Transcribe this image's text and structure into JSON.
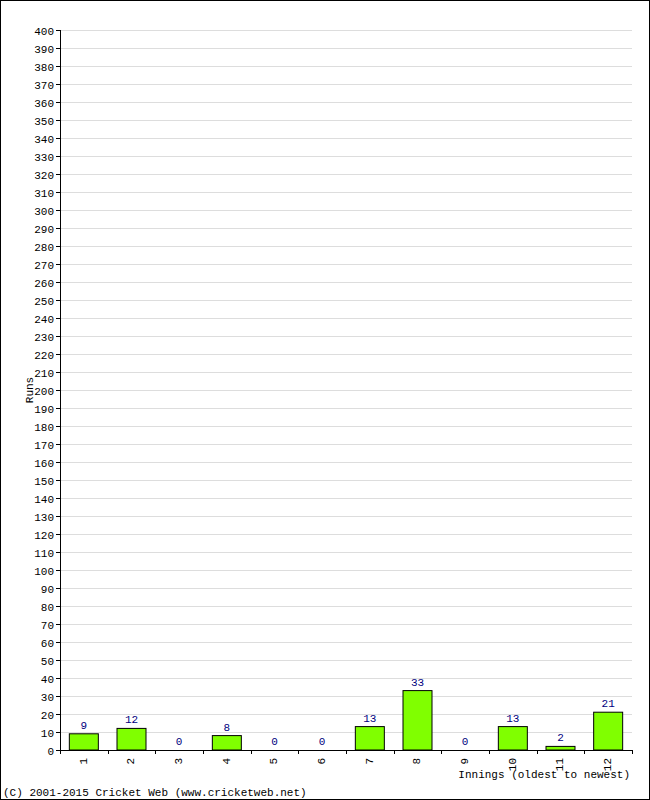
{
  "chart_data": {
    "type": "bar",
    "ylabel": "Runs",
    "xlabel": "Innings (oldest to newest)",
    "annotations": [
      "(C) 2001-2015 Cricket Web (www.cricketweb.net)"
    ],
    "categories": [
      "1",
      "2",
      "3",
      "4",
      "5",
      "6",
      "7",
      "8",
      "9",
      "10",
      "11",
      "12"
    ],
    "values": [
      9,
      12,
      0,
      8,
      0,
      0,
      13,
      33,
      0,
      13,
      2,
      21
    ],
    "color": "#80ff00",
    "ylim": [
      0,
      400
    ],
    "yticks": [
      0,
      10,
      20,
      30,
      40,
      50,
      60,
      70,
      80,
      90,
      100,
      110,
      120,
      130,
      140,
      150,
      160,
      170,
      180,
      190,
      200,
      210,
      220,
      230,
      240,
      250,
      260,
      270,
      280,
      290,
      300,
      310,
      320,
      330,
      340,
      350,
      360,
      370,
      380,
      390,
      400
    ],
    "grid": true,
    "data_labels": true
  }
}
